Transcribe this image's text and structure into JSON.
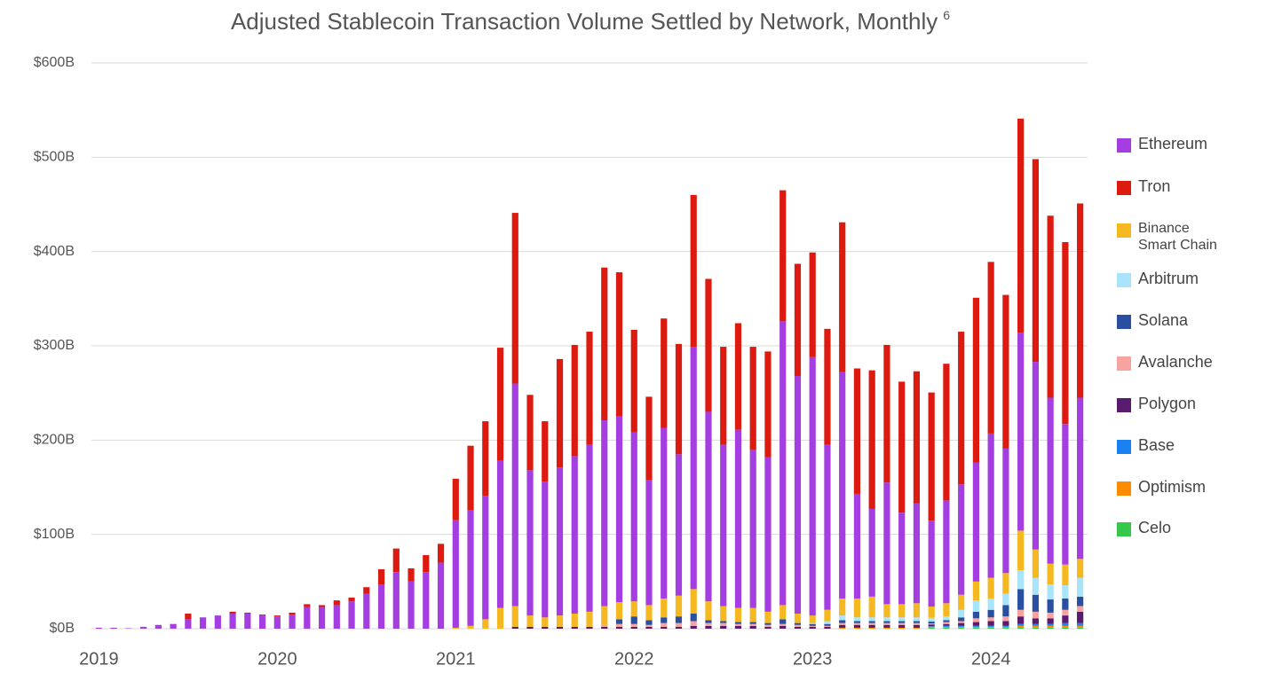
{
  "chart_data": {
    "type": "stacked_bar",
    "title": "Adjusted Stablecoin Transaction Volume Settled by Network, Monthly",
    "title_note": "6",
    "categories": [
      "2019",
      null,
      null,
      null,
      null,
      null,
      null,
      null,
      null,
      null,
      null,
      null,
      "2020",
      null,
      null,
      null,
      null,
      null,
      null,
      null,
      null,
      null,
      null,
      null,
      "2021",
      null,
      null,
      null,
      null,
      null,
      null,
      null,
      null,
      null,
      null,
      null,
      "2022",
      null,
      null,
      null,
      null,
      null,
      null,
      null,
      null,
      null,
      null,
      null,
      "2023",
      null,
      null,
      null,
      null,
      null,
      null,
      null,
      null,
      null,
      null,
      null,
      "2024",
      null,
      null,
      null,
      null,
      null,
      null
    ],
    "ylim": [
      0,
      600
    ],
    "yticks": [
      {
        "value": 0,
        "label": "$0B"
      },
      {
        "value": 100,
        "label": "$100B"
      },
      {
        "value": 200,
        "label": "$200B"
      },
      {
        "value": 300,
        "label": "$300B"
      },
      {
        "value": 400,
        "label": "$400B"
      },
      {
        "value": 500,
        "label": "$500B"
      },
      {
        "value": 600,
        "label": "$600B"
      }
    ],
    "grid": true,
    "legend": "right",
    "series": [
      {
        "name": "Ethereum",
        "color": "#a43ee0",
        "values": [
          1,
          1,
          0.5,
          2,
          4,
          5,
          10,
          12,
          14,
          16,
          16,
          14,
          13,
          15,
          23,
          23,
          25,
          29,
          37,
          47,
          60,
          50,
          60,
          70,
          114,
          123,
          131,
          156,
          236,
          154,
          144,
          157,
          167,
          177,
          197,
          197,
          179,
          133,
          181,
          150,
          257,
          201,
          171,
          189,
          168,
          164,
          301,
          252,
          274,
          175,
          240,
          111,
          93,
          129,
          97,
          106,
          91,
          109,
          117,
          126,
          153,
          132,
          210,
          199,
          176,
          149,
          171
        ]
      },
      {
        "name": "Tron",
        "color": "#dd1a0f",
        "values": [
          0,
          0,
          0,
          0,
          0,
          0,
          6,
          0,
          0,
          2,
          1,
          1,
          1,
          2,
          3,
          2,
          5,
          4,
          7,
          16,
          25,
          14,
          18,
          20,
          44,
          68,
          79,
          120,
          181,
          80,
          64,
          115,
          118,
          120,
          162,
          153,
          109,
          88,
          116,
          117,
          161,
          141,
          104,
          113,
          109,
          112,
          139,
          119,
          111,
          123,
          159,
          133,
          147,
          146,
          139,
          140,
          136,
          145,
          162,
          175,
          182,
          163,
          227,
          215,
          193,
          193,
          206
        ]
      },
      {
        "name": "Binance Smart Chain",
        "color": "#f5b820",
        "values": [
          0,
          0,
          0,
          0,
          0,
          0,
          0,
          0,
          0,
          0,
          0,
          0,
          0,
          0,
          0,
          0,
          0,
          0,
          0,
          0,
          0,
          0,
          0,
          0,
          1,
          3,
          10,
          22,
          22,
          12,
          10,
          12,
          14,
          16,
          20,
          18,
          16,
          16,
          20,
          22,
          26,
          20,
          16,
          15,
          15,
          12,
          15,
          10,
          8,
          12,
          18,
          20,
          22,
          14,
          14,
          15,
          12,
          14,
          16,
          20,
          22,
          22,
          42,
          30,
          22,
          22,
          20
        ]
      },
      {
        "name": "Arbitrum",
        "color": "#a8e4fa",
        "values": [
          0,
          0,
          0,
          0,
          0,
          0,
          0,
          0,
          0,
          0,
          0,
          0,
          0,
          0,
          0,
          0,
          0,
          0,
          0,
          0,
          0,
          0,
          0,
          0,
          0,
          0,
          0,
          0,
          0,
          0,
          0,
          0,
          0,
          0,
          0,
          0,
          0,
          0,
          0,
          0,
          0,
          0,
          0,
          0,
          0,
          0,
          0,
          0,
          1,
          3,
          5,
          4,
          4,
          4,
          4,
          4,
          4,
          4,
          8,
          12,
          12,
          12,
          20,
          18,
          16,
          14,
          20
        ]
      },
      {
        "name": "Solana",
        "color": "#2a4fa0",
        "values": [
          0,
          0,
          0,
          0,
          0,
          0,
          0,
          0,
          0,
          0,
          0,
          0,
          0,
          0,
          0,
          0,
          0,
          0,
          0,
          0,
          0,
          0,
          0,
          0,
          0,
          0,
          0,
          0,
          0,
          0,
          0,
          0,
          0,
          0,
          0,
          5,
          8,
          5,
          6,
          7,
          8,
          3,
          2,
          2,
          2,
          2,
          5,
          2,
          2,
          2,
          3,
          2,
          2,
          2,
          2,
          2,
          2,
          2,
          4,
          7,
          8,
          12,
          22,
          18,
          14,
          12,
          10
        ]
      },
      {
        "name": "Avalanche",
        "color": "#f7a3a0",
        "values": [
          0,
          0,
          0,
          0,
          0,
          0,
          0,
          0,
          0,
          0,
          0,
          0,
          0,
          0,
          0,
          0,
          0,
          0,
          0,
          0,
          0,
          0,
          0,
          0,
          0,
          0,
          0,
          0,
          0,
          0,
          0,
          0,
          0,
          0,
          2,
          3,
          3,
          2,
          4,
          4,
          5,
          3,
          3,
          2,
          2,
          2,
          2,
          2,
          1,
          1,
          2,
          2,
          2,
          2,
          2,
          2,
          1,
          2,
          2,
          4,
          4,
          5,
          7,
          7,
          6,
          6,
          6
        ]
      },
      {
        "name": "Polygon",
        "color": "#5a1a6e",
        "values": [
          0,
          0,
          0,
          0,
          0,
          0,
          0,
          0,
          0,
          0,
          0,
          0,
          0,
          0,
          0,
          0,
          0,
          0,
          0,
          0,
          0,
          0,
          0,
          0,
          0,
          0,
          0,
          0,
          2,
          2,
          2,
          2,
          2,
          2,
          2,
          2,
          2,
          2,
          2,
          2,
          3,
          3,
          3,
          3,
          3,
          2,
          3,
          2,
          2,
          2,
          3,
          3,
          3,
          3,
          3,
          3,
          2,
          2,
          3,
          4,
          5,
          5,
          8,
          6,
          6,
          8,
          12
        ]
      },
      {
        "name": "Base",
        "color": "#1a82f0",
        "values": [
          0,
          0,
          0,
          0,
          0,
          0,
          0,
          0,
          0,
          0,
          0,
          0,
          0,
          0,
          0,
          0,
          0,
          0,
          0,
          0,
          0,
          0,
          0,
          0,
          0,
          0,
          0,
          0,
          0,
          0,
          0,
          0,
          0,
          0,
          0,
          0,
          0,
          0,
          0,
          0,
          0,
          0,
          0,
          0,
          0,
          0,
          0,
          0,
          0,
          0,
          0,
          0,
          0,
          0,
          0,
          0,
          0.5,
          1,
          1,
          1,
          1,
          1,
          2,
          2,
          2,
          3,
          3
        ]
      },
      {
        "name": "Optimism",
        "color": "#ff8c00",
        "values": [
          0,
          0,
          0,
          0,
          0,
          0,
          0,
          0,
          0,
          0,
          0,
          0,
          0,
          0,
          0,
          0,
          0,
          0,
          0,
          0,
          0,
          0,
          0,
          0,
          0,
          0,
          0,
          0,
          0,
          0,
          0,
          0,
          0,
          0,
          0,
          0,
          0,
          0,
          0,
          0,
          0,
          0,
          0,
          0,
          0,
          0,
          0,
          0,
          0,
          0,
          1,
          1,
          1,
          1,
          1,
          1,
          1,
          1,
          1,
          1,
          1,
          1,
          2,
          2,
          2,
          2,
          2
        ]
      },
      {
        "name": "Celo",
        "color": "#35c84a",
        "values": [
          0,
          0,
          0,
          0,
          0,
          0,
          0,
          0,
          0,
          0,
          0,
          0,
          0,
          0,
          0,
          0,
          0,
          0,
          0,
          0,
          0,
          0,
          0,
          0,
          0,
          0,
          0,
          0,
          0,
          0,
          0,
          0,
          0,
          0,
          0,
          0,
          0,
          0,
          0,
          0,
          0,
          0,
          0,
          0,
          0,
          0,
          0,
          0,
          0,
          0,
          0,
          0,
          0,
          0,
          0,
          0,
          1,
          1,
          1,
          1,
          1,
          1,
          1,
          1,
          1,
          1,
          1
        ]
      }
    ]
  }
}
